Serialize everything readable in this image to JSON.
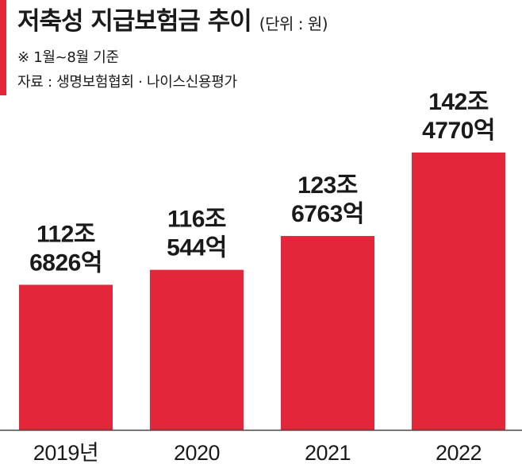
{
  "header": {
    "title": "저축성 지급보험금 추이",
    "unit": "(단위 : 원)",
    "note_period": "※ 1월~8월 기준",
    "note_source": "자료 : 생명보험협회 · 나이스신용평가"
  },
  "colors": {
    "bar": "#e3263a",
    "accent": "#e3263a",
    "axis": "#444444"
  },
  "chart_data": {
    "type": "bar",
    "title": "저축성 지급보험금 추이",
    "unit": "원",
    "categories": [
      "2019년",
      "2020",
      "2021",
      "2022"
    ],
    "values_trillion_won": [
      112.6826,
      116.0544,
      123.6763,
      142.477
    ],
    "data_labels": [
      [
        "112조",
        "6826억"
      ],
      [
        "116조",
        "544억"
      ],
      [
        "123조",
        "6763억"
      ],
      [
        "142조",
        "4770억"
      ]
    ],
    "ylim": [
      80,
      150
    ],
    "grid": false,
    "legend": "none"
  }
}
